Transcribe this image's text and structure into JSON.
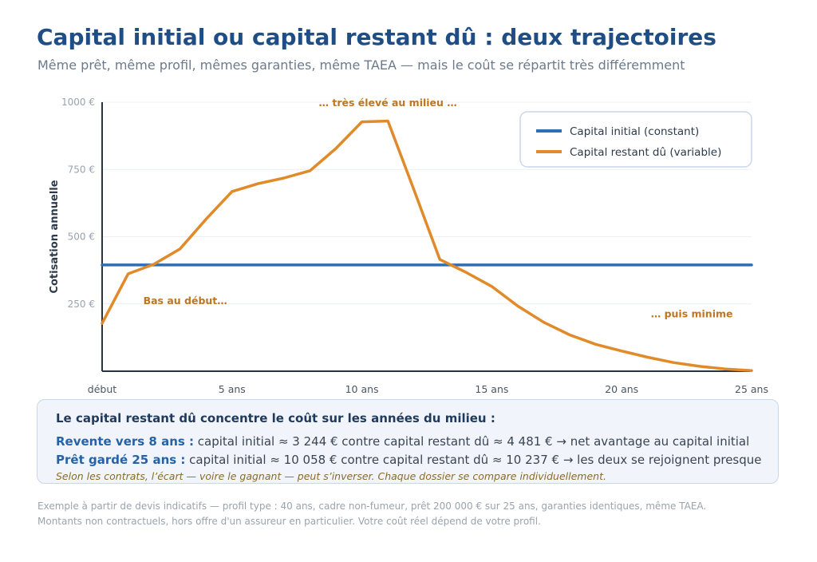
{
  "header": {
    "title": "Capital initial ou capital restant dû : deux trajectoires",
    "subtitle": "Même prêt, même profil, mêmes garanties, même TAEA — mais le coût se répartit très différemment"
  },
  "chart_data": {
    "type": "line",
    "ylabel": "Cotisation annuelle",
    "xlabel": "",
    "x_ticks": [
      {
        "value": 0,
        "label": "début"
      },
      {
        "value": 5,
        "label": "5 ans"
      },
      {
        "value": 10,
        "label": "10 ans"
      },
      {
        "value": 15,
        "label": "15 ans"
      },
      {
        "value": 20,
        "label": "20 ans"
      },
      {
        "value": 25,
        "label": "25 ans"
      }
    ],
    "y_ticks": [
      {
        "value": 250,
        "label": "250 €"
      },
      {
        "value": 500,
        "label": "500 €"
      },
      {
        "value": 750,
        "label": "750 €"
      },
      {
        "value": 1000,
        "label": "1000 €"
      }
    ],
    "xlim": [
      0,
      25
    ],
    "ylim": [
      0,
      1000
    ],
    "grid": true,
    "legend_position": "top-right",
    "series": [
      {
        "name": "Capital initial (constant)",
        "color": "#2f6db5",
        "x": [
          0,
          25
        ],
        "values": [
          395,
          395
        ]
      },
      {
        "name": "Capital restant dû (variable)",
        "color": "#e08a2a",
        "x": [
          0,
          1,
          2,
          3,
          4,
          5,
          6,
          7,
          8,
          9,
          10,
          11,
          12,
          13,
          14,
          15,
          16,
          17,
          18,
          19,
          20,
          21,
          22,
          23,
          24,
          25
        ],
        "values": [
          178,
          362,
          398,
          455,
          565,
          668,
          697,
          718,
          745,
          828,
          927,
          930,
          675,
          415,
          368,
          315,
          242,
          182,
          135,
          100,
          75,
          52,
          32,
          18,
          8,
          2
        ]
      }
    ],
    "annotations": [
      {
        "text": "… très élevé au milieu …",
        "x": 11,
        "y": 985,
        "color": "#c0751f"
      },
      {
        "text": "Bas au début…",
        "x": 3.2,
        "y": 250,
        "color": "#c0751f"
      },
      {
        "text": "… puis minime",
        "x": 22.7,
        "y": 200,
        "color": "#c0751f"
      }
    ]
  },
  "info": {
    "heading": "Le capital restant dû concentre le coût sur les années du milieu :",
    "row1_label": "Revente vers 8 ans :",
    "row1_text": " capital initial ≈ 3 244 €  contre  capital restant dû ≈ 4 481 €  → net avantage au capital initial",
    "row2_label": "Prêt gardé 25 ans :",
    "row2_text": " capital initial ≈ 10 058 €  contre  capital restant dû ≈ 10 237 €  → les deux se rejoignent presque",
    "note": "Selon les contrats, l’écart — voire le gagnant — peut s’inverser. Chaque dossier se compare individuellement."
  },
  "footer": {
    "line1": "Exemple à partir de devis indicatifs — profil type : 40 ans, cadre non-fumeur, prêt 200 000 € sur 25 ans, garanties identiques, même TAEA.",
    "line2": "Montants non contractuels, hors offre d'un assureur en particulier. Votre coût réel dépend de votre profil."
  }
}
